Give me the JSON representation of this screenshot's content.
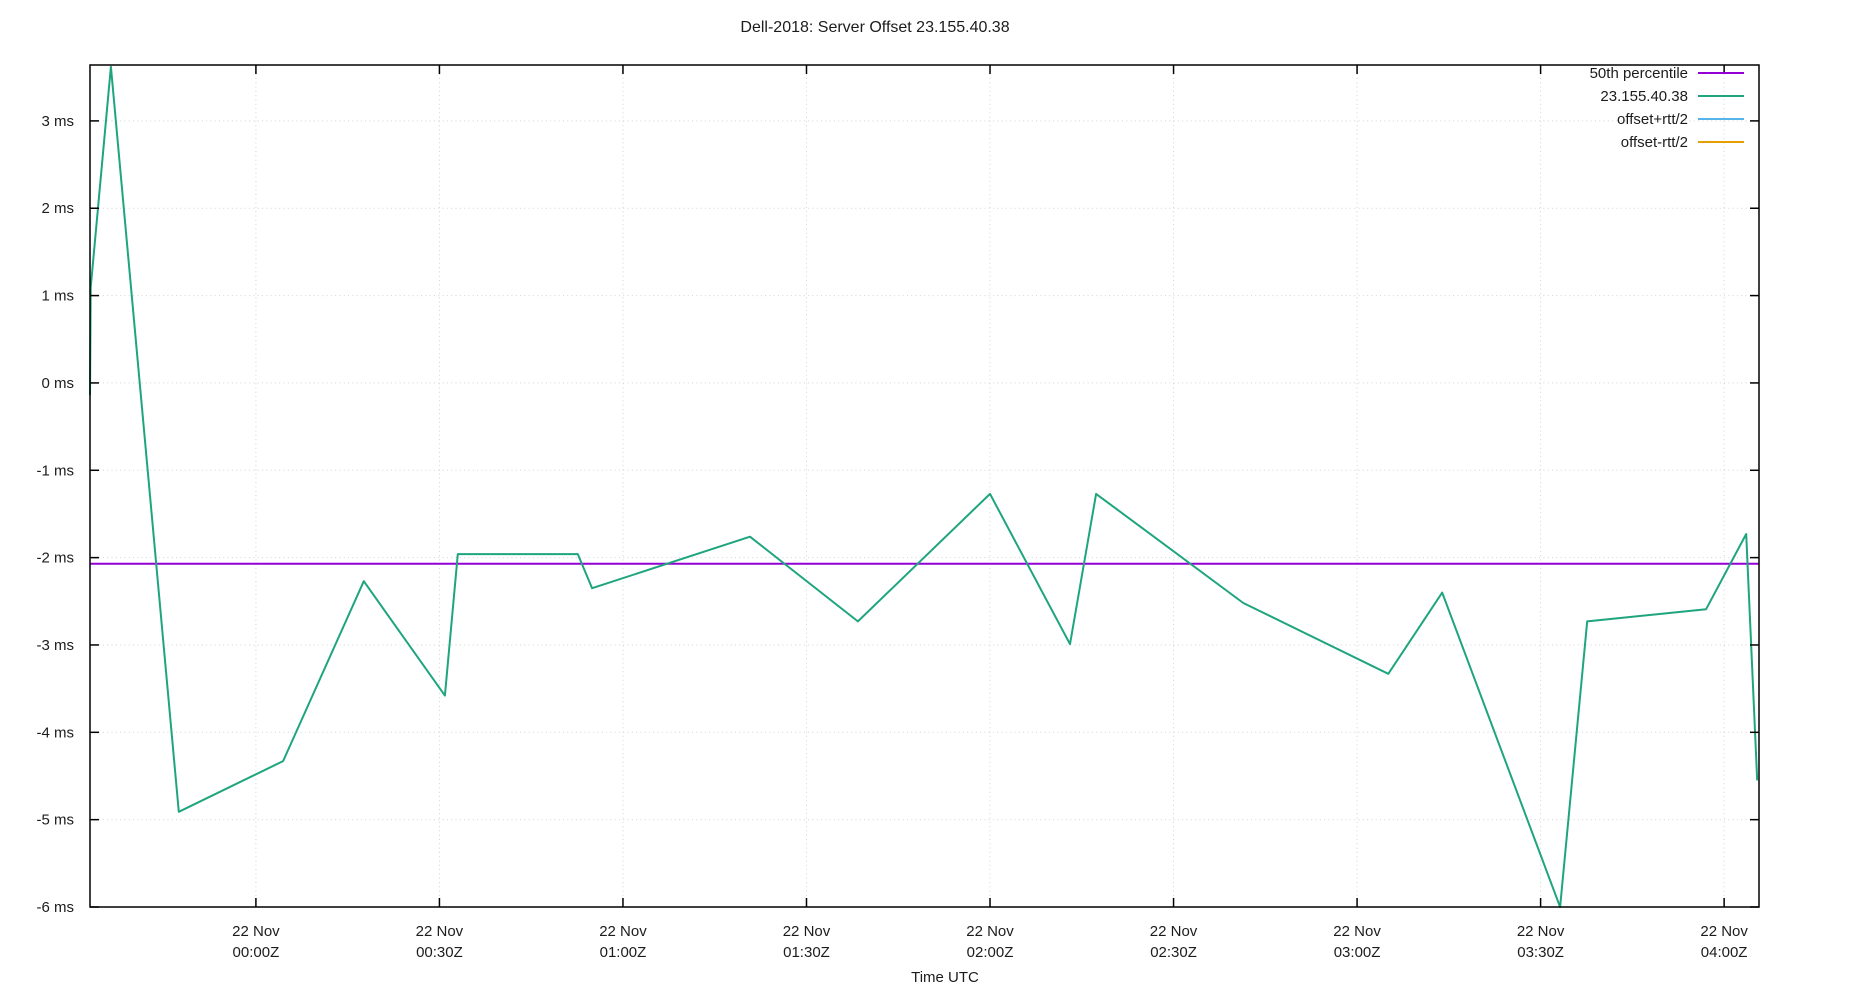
{
  "title": "Dell-2018: Server Offset 23.155.40.38",
  "chart_data": {
    "type": "line",
    "title": "Dell-2018: Server Offset 23.155.40.38",
    "xlabel": "Time UTC",
    "ylabel": "",
    "grid": true,
    "legend_position": "top-right",
    "xlim_hours": [
      -0.452,
      4.095
    ],
    "ylim": [
      -6.0,
      3.64
    ],
    "x_ticks": [
      {
        "t": 0.0,
        "date": "22 Nov",
        "time": "00:00Z"
      },
      {
        "t": 0.5,
        "date": "22 Nov",
        "time": "00:30Z"
      },
      {
        "t": 1.0,
        "date": "22 Nov",
        "time": "01:00Z"
      },
      {
        "t": 1.5,
        "date": "22 Nov",
        "time": "01:30Z"
      },
      {
        "t": 2.0,
        "date": "22 Nov",
        "time": "02:00Z"
      },
      {
        "t": 2.5,
        "date": "22 Nov",
        "time": "02:30Z"
      },
      {
        "t": 3.0,
        "date": "22 Nov",
        "time": "03:00Z"
      },
      {
        "t": 3.5,
        "date": "22 Nov",
        "time": "03:30Z"
      },
      {
        "t": 4.0,
        "date": "22 Nov",
        "time": "04:00Z"
      }
    ],
    "y_ticks": [
      {
        "v": 3,
        "label": "3 ms"
      },
      {
        "v": 2,
        "label": "2 ms"
      },
      {
        "v": 1,
        "label": "1 ms"
      },
      {
        "v": 0,
        "label": "0 ms"
      },
      {
        "v": -1,
        "label": "-1 ms"
      },
      {
        "v": -2,
        "label": "-2 ms"
      },
      {
        "v": -3,
        "label": "-3 ms"
      },
      {
        "v": -4,
        "label": "-4 ms"
      },
      {
        "v": -5,
        "label": "-5 ms"
      },
      {
        "v": -6,
        "label": "-6 ms"
      }
    ],
    "series": [
      {
        "name": "50th percentile",
        "color": "#9400d3",
        "kind": "hline",
        "value_ms": -2.07
      },
      {
        "name": "23.155.40.38",
        "color": "#1fa57e",
        "kind": "line",
        "points_t_hours_v_ms": [
          [
            -0.452,
            -0.14
          ],
          [
            -0.45,
            1.09
          ],
          [
            -0.395,
            3.62
          ],
          [
            -0.21,
            -4.91
          ],
          [
            0.074,
            -4.33
          ],
          [
            0.294,
            -2.27
          ],
          [
            0.515,
            -3.58
          ],
          [
            0.55,
            -1.96
          ],
          [
            0.877,
            -1.96
          ],
          [
            0.916,
            -2.35
          ],
          [
            1.346,
            -1.76
          ],
          [
            1.64,
            -2.73
          ],
          [
            2.0,
            -1.27
          ],
          [
            2.218,
            -2.99
          ],
          [
            2.289,
            -1.27
          ],
          [
            2.69,
            -2.52
          ],
          [
            3.085,
            -3.33
          ],
          [
            3.232,
            -2.4
          ],
          [
            3.553,
            -6.0
          ],
          [
            3.627,
            -2.73
          ],
          [
            3.951,
            -2.59
          ],
          [
            4.06,
            -1.73
          ],
          [
            4.09,
            -4.55
          ]
        ]
      },
      {
        "name": "offset+rtt/2",
        "color": "#56b4e9",
        "kind": "line",
        "points_t_hours_v_ms": []
      },
      {
        "name": "offset-rtt/2",
        "color": "#e69f00",
        "kind": "line",
        "points_t_hours_v_ms": []
      }
    ]
  }
}
